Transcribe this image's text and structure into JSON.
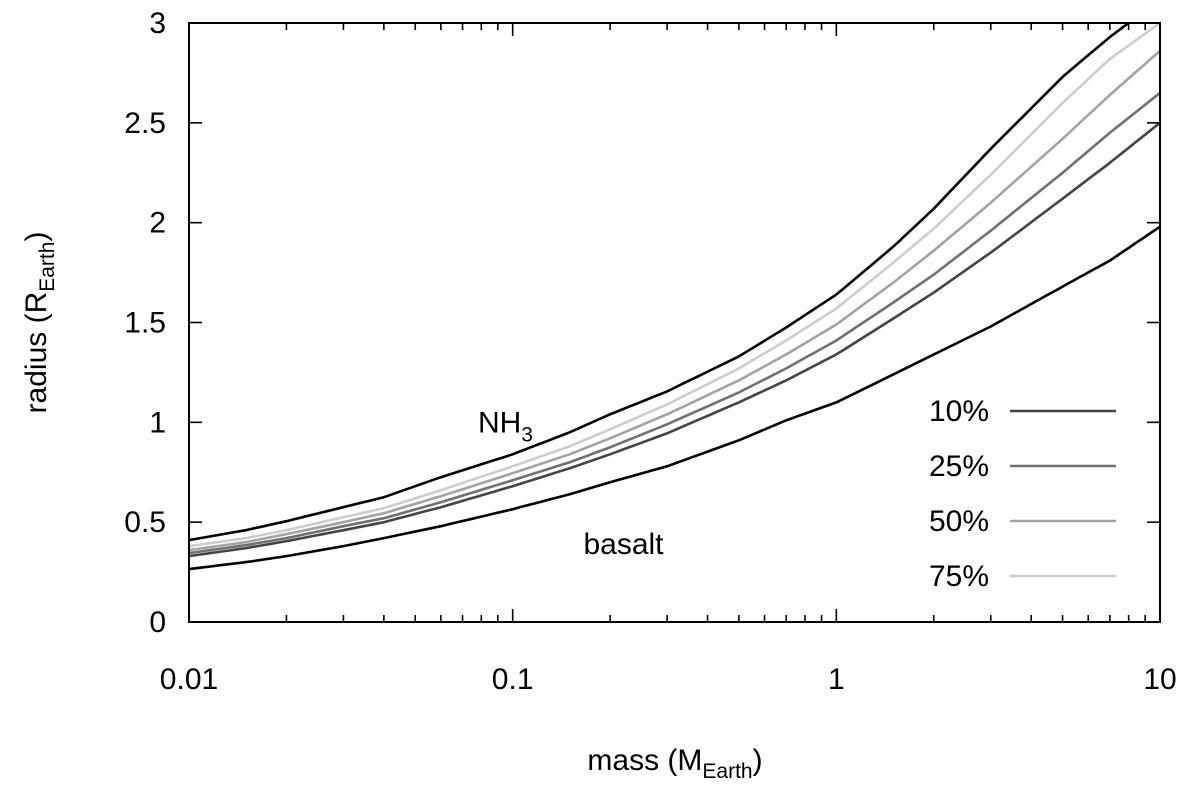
{
  "chart_data": {
    "type": "line",
    "xscale": "log",
    "xlim": [
      0.01,
      10
    ],
    "ylim": [
      0,
      3
    ],
    "xticks": [
      {
        "value": 0.01,
        "label": "0.01"
      },
      {
        "value": 0.1,
        "label": "0.1"
      },
      {
        "value": 1,
        "label": "1"
      },
      {
        "value": 10,
        "label": "10"
      }
    ],
    "yticks": [
      {
        "value": 0,
        "label": "0"
      },
      {
        "value": 0.5,
        "label": "0.5"
      },
      {
        "value": 1,
        "label": "1"
      },
      {
        "value": 1.5,
        "label": "1.5"
      },
      {
        "value": 2,
        "label": "2"
      },
      {
        "value": 2.5,
        "label": "2.5"
      },
      {
        "value": 3,
        "label": "3"
      }
    ],
    "xlabel": {
      "main": "mass (M",
      "sub": "Earth",
      "close": ")"
    },
    "ylabel": {
      "main": "radius (R",
      "sub": "Earth",
      "close": ")"
    },
    "grid": false,
    "legend_position": "bottom-right",
    "annotations": [
      {
        "id": "nh3",
        "text": "NH",
        "sub": "3",
        "x": 0.095,
        "y": 1.0
      },
      {
        "id": "basalt",
        "text": "basalt",
        "x": 0.22,
        "y": 0.39
      }
    ],
    "series": [
      {
        "id": "basalt",
        "color": "#000000",
        "legend": false,
        "x": [
          0.01,
          0.015,
          0.02,
          0.03,
          0.04,
          0.06,
          0.1,
          0.15,
          0.2,
          0.3,
          0.5,
          0.7,
          1,
          1.5,
          2,
          3,
          5,
          7,
          10
        ],
        "y": [
          0.265,
          0.3,
          0.33,
          0.38,
          0.42,
          0.48,
          0.565,
          0.64,
          0.7,
          0.78,
          0.91,
          1.01,
          1.1,
          1.24,
          1.34,
          1.48,
          1.68,
          1.81,
          1.98
        ]
      },
      {
        "id": "s10",
        "name": "10%",
        "color": "#444444",
        "legend": true,
        "x": [
          0.01,
          0.015,
          0.02,
          0.03,
          0.04,
          0.06,
          0.1,
          0.15,
          0.2,
          0.3,
          0.5,
          0.7,
          1,
          1.5,
          2,
          3,
          5,
          7,
          10
        ],
        "y": [
          0.33,
          0.37,
          0.405,
          0.46,
          0.5,
          0.575,
          0.68,
          0.77,
          0.84,
          0.945,
          1.1,
          1.21,
          1.34,
          1.52,
          1.65,
          1.85,
          2.12,
          2.3,
          2.5
        ]
      },
      {
        "id": "s25",
        "name": "25%",
        "color": "#707070",
        "legend": true,
        "x": [
          0.01,
          0.015,
          0.02,
          0.03,
          0.04,
          0.06,
          0.1,
          0.15,
          0.2,
          0.3,
          0.5,
          0.7,
          1,
          1.5,
          2,
          3,
          5,
          7,
          10
        ],
        "y": [
          0.345,
          0.385,
          0.42,
          0.48,
          0.52,
          0.6,
          0.71,
          0.8,
          0.875,
          0.99,
          1.15,
          1.27,
          1.41,
          1.6,
          1.74,
          1.96,
          2.25,
          2.45,
          2.65
        ]
      },
      {
        "id": "s50",
        "name": "50%",
        "color": "#a3a3a3",
        "legend": true,
        "x": [
          0.01,
          0.015,
          0.02,
          0.03,
          0.04,
          0.06,
          0.1,
          0.15,
          0.2,
          0.3,
          0.5,
          0.7,
          1,
          1.5,
          2,
          3,
          5,
          7,
          10
        ],
        "y": [
          0.36,
          0.4,
          0.44,
          0.5,
          0.545,
          0.63,
          0.745,
          0.84,
          0.92,
          1.04,
          1.21,
          1.34,
          1.49,
          1.7,
          1.86,
          2.1,
          2.42,
          2.64,
          2.86
        ]
      },
      {
        "id": "s75",
        "name": "75%",
        "color": "#cdcdcd",
        "legend": true,
        "x": [
          0.01,
          0.015,
          0.02,
          0.03,
          0.04,
          0.06,
          0.1,
          0.15,
          0.2,
          0.3,
          0.5,
          0.7,
          1,
          1.5,
          2,
          3,
          5,
          7,
          10
        ],
        "y": [
          0.38,
          0.42,
          0.46,
          0.525,
          0.57,
          0.66,
          0.78,
          0.88,
          0.965,
          1.09,
          1.27,
          1.41,
          1.57,
          1.8,
          1.97,
          2.24,
          2.6,
          2.82,
          3.0
        ]
      },
      {
        "id": "nh3",
        "color": "#000000",
        "legend": false,
        "x": [
          0.01,
          0.015,
          0.02,
          0.03,
          0.04,
          0.06,
          0.1,
          0.15,
          0.2,
          0.3,
          0.5,
          0.7,
          1,
          1.5,
          2,
          3,
          5,
          7,
          8
        ],
        "y": [
          0.41,
          0.46,
          0.505,
          0.575,
          0.625,
          0.725,
          0.84,
          0.95,
          1.04,
          1.155,
          1.33,
          1.475,
          1.64,
          1.88,
          2.07,
          2.37,
          2.73,
          2.93,
          3.0
        ]
      }
    ]
  }
}
